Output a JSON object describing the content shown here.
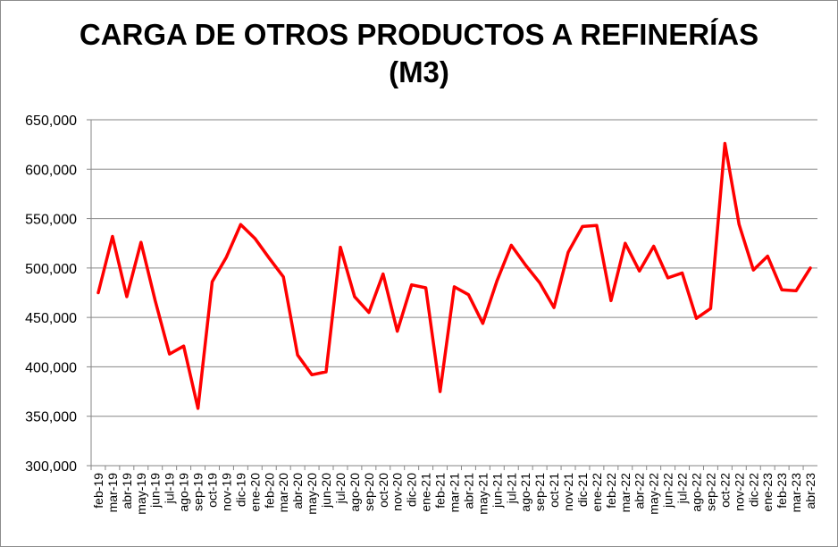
{
  "chart_data": {
    "type": "line",
    "title_line1": "CARGA DE OTROS PRODUCTOS A REFINERÍAS",
    "title_line2": "(M3)",
    "xlabel": "",
    "ylabel": "",
    "ylim": [
      300000,
      650000
    ],
    "yticks": [
      300000,
      350000,
      400000,
      450000,
      500000,
      550000,
      600000,
      650000
    ],
    "ytick_labels": [
      "300,000",
      "350,000",
      "400,000",
      "450,000",
      "500,000",
      "550,000",
      "600,000",
      "650,000"
    ],
    "grid": true,
    "line_color": "#ff0000",
    "categories": [
      "feb-19",
      "mar-19",
      "abr-19",
      "may-19",
      "jun-19",
      "jul-19",
      "ago-19",
      "sep-19",
      "oct-19",
      "nov-19",
      "dic-19",
      "ene-20",
      "feb-20",
      "mar-20",
      "abr-20",
      "may-20",
      "jun-20",
      "jul-20",
      "ago-20",
      "sep-20",
      "oct-20",
      "nov-20",
      "dic-20",
      "ene-21",
      "feb-21",
      "mar-21",
      "abr-21",
      "may-21",
      "jun-21",
      "jul-21",
      "ago-21",
      "sep-21",
      "oct-21",
      "nov-21",
      "dic-21",
      "ene-22",
      "feb-22",
      "mar-22",
      "abr-22",
      "may-22",
      "jun-22",
      "jul-22",
      "ago-22",
      "sep-22",
      "oct-22",
      "nov-22",
      "dic-22",
      "ene-23",
      "feb-23",
      "mar-23",
      "abr-23"
    ],
    "values": [
      475000,
      532000,
      471000,
      526000,
      467000,
      413000,
      421000,
      358000,
      486000,
      511000,
      544000,
      530000,
      510000,
      491000,
      412000,
      392000,
      395000,
      521000,
      471000,
      455000,
      494000,
      436000,
      483000,
      480000,
      375000,
      481000,
      473000,
      444000,
      487000,
      523000,
      503000,
      485000,
      460000,
      516000,
      542000,
      543000,
      467000,
      525000,
      497000,
      522000,
      490000,
      495000,
      449000,
      459000,
      626000,
      544000,
      498000,
      512000,
      478000,
      477000,
      500000
    ]
  }
}
